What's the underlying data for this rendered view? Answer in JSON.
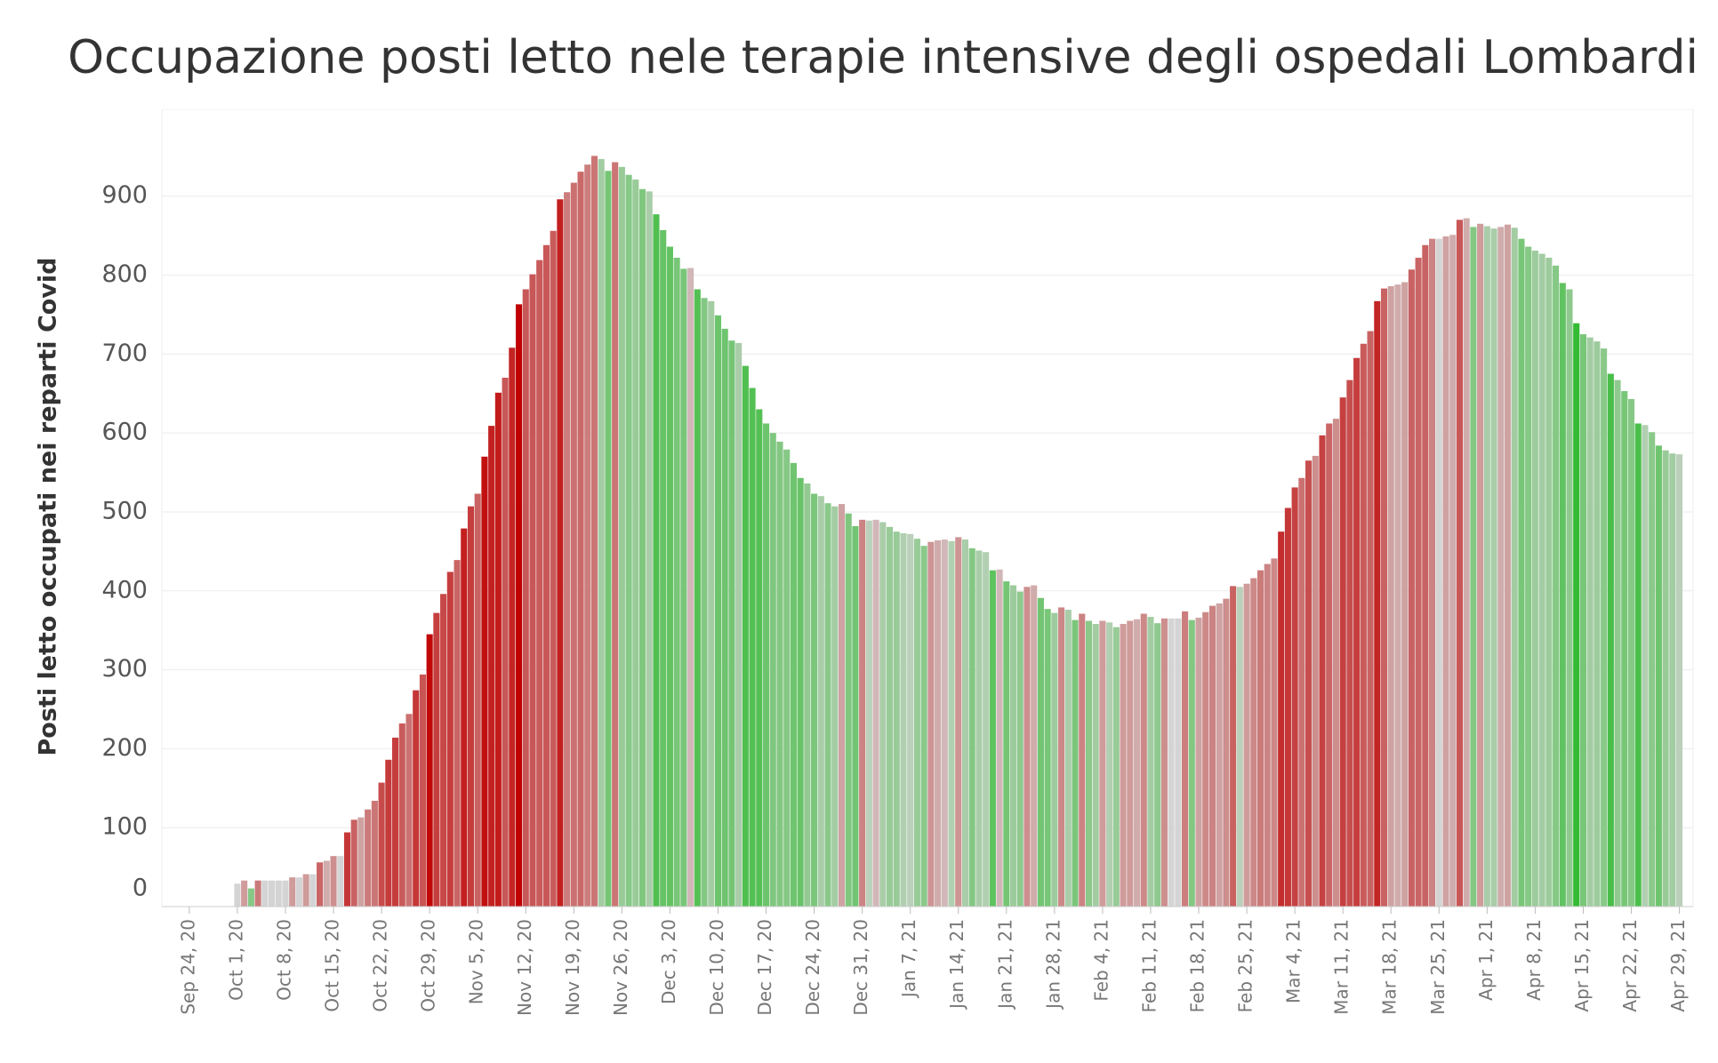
{
  "chart_data": {
    "type": "bar",
    "title": "Occupazione posti letto nele terapie intensive degli ospedali Lombardi",
    "y_label": "Posti letto occupati nei reparti Covid",
    "increase_color": "#c00000",
    "decrease_color": "#33bb33",
    "neutral_color": "#d4d4d4",
    "grid": true,
    "ylim": [
      0,
      1010
    ],
    "yticks": [
      0,
      100,
      200,
      300,
      400,
      500,
      600,
      700,
      800,
      900
    ],
    "xlim": [
      "2020-09-20",
      "2021-05-01"
    ],
    "xticks": [
      {
        "value": "2020-09-24",
        "label": "Sep 24, 20"
      },
      {
        "value": "2020-10-01",
        "label": "Oct 1, 20"
      },
      {
        "value": "2020-10-08",
        "label": "Oct 8, 20"
      },
      {
        "value": "2020-10-15",
        "label": "Oct 15, 20"
      },
      {
        "value": "2020-10-22",
        "label": "Oct 22, 20"
      },
      {
        "value": "2020-10-29",
        "label": "Oct 29, 20"
      },
      {
        "value": "2020-11-05",
        "label": "Nov 5, 20"
      },
      {
        "value": "2020-11-12",
        "label": "Nov 12, 20"
      },
      {
        "value": "2020-11-19",
        "label": "Nov 19, 20"
      },
      {
        "value": "2020-11-26",
        "label": "Nov 26, 20"
      },
      {
        "value": "2020-12-03",
        "label": "Dec 3, 20"
      },
      {
        "value": "2020-12-10",
        "label": "Dec 10, 20"
      },
      {
        "value": "2020-12-17",
        "label": "Dec 17, 20"
      },
      {
        "value": "2020-12-24",
        "label": "Dec 24, 20"
      },
      {
        "value": "2020-12-31",
        "label": "Dec 31, 20"
      },
      {
        "value": "2021-01-07",
        "label": "Jan 7, 21"
      },
      {
        "value": "2021-01-14",
        "label": "Jan 14, 21"
      },
      {
        "value": "2021-01-21",
        "label": "Jan 21, 21"
      },
      {
        "value": "2021-01-28",
        "label": "Jan 28, 21"
      },
      {
        "value": "2021-02-04",
        "label": "Feb 4, 21"
      },
      {
        "value": "2021-02-11",
        "label": "Feb 11, 21"
      },
      {
        "value": "2021-02-18",
        "label": "Feb 18, 21"
      },
      {
        "value": "2021-02-25",
        "label": "Feb 25, 21"
      },
      {
        "value": "2021-03-04",
        "label": "Mar 4, 21"
      },
      {
        "value": "2021-03-11",
        "label": "Mar 11, 21"
      },
      {
        "value": "2021-03-18",
        "label": "Mar 18, 21"
      },
      {
        "value": "2021-03-25",
        "label": "Mar 25, 21"
      },
      {
        "value": "2021-04-01",
        "label": "Apr 1, 21"
      },
      {
        "value": "2021-04-08",
        "label": "Apr 8, 21"
      },
      {
        "value": "2021-04-15",
        "label": "Apr 15, 21"
      },
      {
        "value": "2021-04-22",
        "label": "Apr 22, 21"
      },
      {
        "value": "2021-04-29",
        "label": "Apr 29, 21"
      }
    ],
    "x": [
      "2020-10-01",
      "2020-10-02",
      "2020-10-03",
      "2020-10-04",
      "2020-10-05",
      "2020-10-06",
      "2020-10-07",
      "2020-10-08",
      "2020-10-09",
      "2020-10-10",
      "2020-10-11",
      "2020-10-12",
      "2020-10-13",
      "2020-10-14",
      "2020-10-15",
      "2020-10-16",
      "2020-10-17",
      "2020-10-18",
      "2020-10-19",
      "2020-10-20",
      "2020-10-21",
      "2020-10-22",
      "2020-10-23",
      "2020-10-24",
      "2020-10-25",
      "2020-10-26",
      "2020-10-27",
      "2020-10-28",
      "2020-10-29",
      "2020-10-30",
      "2020-10-31",
      "2020-11-01",
      "2020-11-02",
      "2020-11-03",
      "2020-11-04",
      "2020-11-05",
      "2020-11-06",
      "2020-11-07",
      "2020-11-08",
      "2020-11-09",
      "2020-11-10",
      "2020-11-11",
      "2020-11-12",
      "2020-11-13",
      "2020-11-14",
      "2020-11-15",
      "2020-11-16",
      "2020-11-17",
      "2020-11-18",
      "2020-11-19",
      "2020-11-20",
      "2020-11-21",
      "2020-11-22",
      "2020-11-23",
      "2020-11-24",
      "2020-11-25",
      "2020-11-26",
      "2020-11-27",
      "2020-11-28",
      "2020-11-29",
      "2020-11-30",
      "2020-12-01",
      "2020-12-02",
      "2020-12-03",
      "2020-12-04",
      "2020-12-05",
      "2020-12-06",
      "2020-12-07",
      "2020-12-08",
      "2020-12-09",
      "2020-12-10",
      "2020-12-11",
      "2020-12-12",
      "2020-12-13",
      "2020-12-14",
      "2020-12-15",
      "2020-12-16",
      "2020-12-17",
      "2020-12-18",
      "2020-12-19",
      "2020-12-20",
      "2020-12-21",
      "2020-12-22",
      "2020-12-23",
      "2020-12-24",
      "2020-12-25",
      "2020-12-26",
      "2020-12-27",
      "2020-12-28",
      "2020-12-29",
      "2020-12-30",
      "2020-12-31",
      "2021-01-01",
      "2021-01-02",
      "2021-01-03",
      "2021-01-04",
      "2021-01-05",
      "2021-01-06",
      "2021-01-07",
      "2021-01-08",
      "2021-01-09",
      "2021-01-10",
      "2021-01-11",
      "2021-01-12",
      "2021-01-13",
      "2021-01-14",
      "2021-01-15",
      "2021-01-16",
      "2021-01-17",
      "2021-01-18",
      "2021-01-19",
      "2021-01-20",
      "2021-01-21",
      "2021-01-22",
      "2021-01-23",
      "2021-01-24",
      "2021-01-25",
      "2021-01-26",
      "2021-01-27",
      "2021-01-28",
      "2021-01-29",
      "2021-01-30",
      "2021-01-31",
      "2021-02-01",
      "2021-02-02",
      "2021-02-03",
      "2021-02-04",
      "2021-02-05",
      "2021-02-06",
      "2021-02-07",
      "2021-02-08",
      "2021-02-09",
      "2021-02-10",
      "2021-02-11",
      "2021-02-12",
      "2021-02-13",
      "2021-02-14",
      "2021-02-15",
      "2021-02-16",
      "2021-02-17",
      "2021-02-18",
      "2021-02-19",
      "2021-02-20",
      "2021-02-21",
      "2021-02-22",
      "2021-02-23",
      "2021-02-24",
      "2021-02-25",
      "2021-02-26",
      "2021-02-27",
      "2021-02-28",
      "2021-03-01",
      "2021-03-02",
      "2021-03-03",
      "2021-03-04",
      "2021-03-05",
      "2021-03-06",
      "2021-03-07",
      "2021-03-08",
      "2021-03-09",
      "2021-03-10",
      "2021-03-11",
      "2021-03-12",
      "2021-03-13",
      "2021-03-14",
      "2021-03-15",
      "2021-03-16",
      "2021-03-17",
      "2021-03-18",
      "2021-03-19",
      "2021-03-20",
      "2021-03-21",
      "2021-03-22",
      "2021-03-23",
      "2021-03-24",
      "2021-03-25",
      "2021-03-26",
      "2021-03-27",
      "2021-03-28",
      "2021-03-29",
      "2021-03-30",
      "2021-03-31",
      "2021-04-01",
      "2021-04-02",
      "2021-04-03",
      "2021-04-04",
      "2021-04-05",
      "2021-04-06",
      "2021-04-07",
      "2021-04-08",
      "2021-04-09",
      "2021-04-10",
      "2021-04-11",
      "2021-04-12",
      "2021-04-13",
      "2021-04-14",
      "2021-04-15",
      "2021-04-16",
      "2021-04-17",
      "2021-04-18",
      "2021-04-19",
      "2021-04-20",
      "2021-04-21",
      "2021-04-22",
      "2021-04-23",
      "2021-04-24",
      "2021-04-25",
      "2021-04-26",
      "2021-04-27",
      "2021-04-28",
      "2021-04-29"
    ],
    "values": [
      29,
      33,
      23,
      33,
      33,
      33,
      33,
      33,
      37,
      37,
      41,
      41,
      56,
      58,
      64,
      64,
      94,
      110,
      113,
      123,
      134,
      157,
      186,
      214,
      232,
      244,
      274,
      294,
      345,
      372,
      396,
      424,
      439,
      479,
      507,
      523,
      570,
      609,
      651,
      670,
      708,
      763,
      782,
      801,
      819,
      838,
      856,
      896,
      905,
      917,
      931,
      940,
      951,
      947,
      932,
      943,
      937,
      927,
      921,
      909,
      906,
      877,
      857,
      836,
      822,
      808,
      809,
      782,
      771,
      767,
      749,
      732,
      717,
      714,
      685,
      657,
      630,
      612,
      600,
      589,
      579,
      562,
      543,
      536,
      523,
      520,
      511,
      507,
      510,
      498,
      482,
      490,
      489,
      490,
      487,
      481,
      475,
      473,
      472,
      466,
      457,
      462,
      464,
      465,
      463,
      468,
      465,
      454,
      451,
      449,
      426,
      427,
      412,
      407,
      399,
      405,
      407,
      391,
      377,
      372,
      379,
      376,
      363,
      371,
      362,
      358,
      362,
      360,
      354,
      358,
      362,
      364,
      371,
      367,
      359,
      365,
      365,
      365,
      374,
      363,
      366,
      373,
      381,
      384,
      390,
      406,
      405,
      409,
      416,
      426,
      434,
      441,
      475,
      505,
      531,
      543,
      565,
      571,
      597,
      612,
      618,
      645,
      667,
      695,
      713,
      729,
      767,
      783,
      786,
      788,
      791,
      807,
      822,
      838,
      846,
      846,
      849,
      851,
      870,
      872,
      861,
      865,
      862,
      859,
      861,
      864,
      860,
      846,
      836,
      831,
      827,
      822,
      812,
      790,
      782,
      739,
      725,
      721,
      716,
      707,
      675,
      667,
      653,
      643,
      612,
      610,
      601,
      584,
      578,
      574,
      573
    ]
  }
}
